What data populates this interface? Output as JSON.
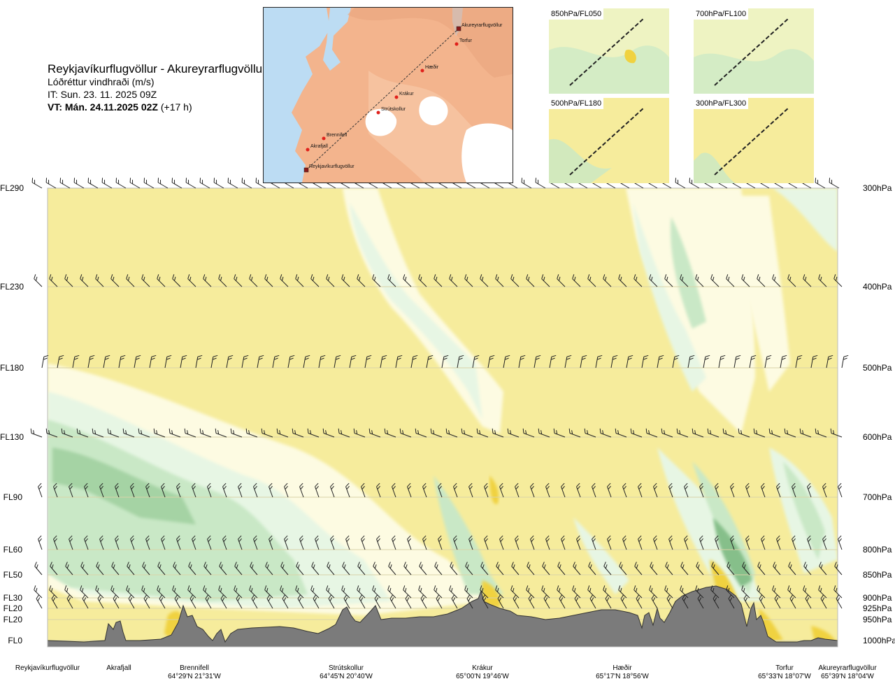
{
  "header": {
    "route": "Reykjavíkurflugvöllur - Akureyrarflugvöllur",
    "parameter": "Lóðréttur vindhraði (m/s)",
    "issue_time": "IT: Sun. 23. 11. 2025 09Z",
    "valid_time_bold": "VT: Mán. 24.11.2025 02Z",
    "valid_time_rest": "(+17 h)"
  },
  "inset_map": {
    "waypoints": [
      {
        "name": "Akureyrarflugvöllur"
      },
      {
        "name": "Torfur"
      },
      {
        "name": "Hæðir"
      },
      {
        "name": "Krákur"
      },
      {
        "name": "Strútskollur"
      },
      {
        "name": "Brennifell"
      },
      {
        "name": "Akrafjall"
      },
      {
        "name": "Reykjavíkurflugvöllur"
      }
    ],
    "colors": {
      "land": "#f3b48d",
      "sea": "#bcdcf3",
      "ice": "#ffffff",
      "route": "#333333",
      "waypoint": "#e0201b"
    }
  },
  "mini_maps": [
    {
      "label": "850hPa/FL050"
    },
    {
      "label": "700hPa/FL100"
    },
    {
      "label": "500hPa/FL180"
    },
    {
      "label": "300hPa/FL300"
    }
  ],
  "chart_data": {
    "type": "heatmap",
    "title": "Reykjavíkurflugvöllur - Akureyrarflugvöllur",
    "subtitle": "Lóðréttur vindhraði (m/s)",
    "levels": [
      {
        "fl": "FL290",
        "hpa": "300hPa"
      },
      {
        "fl": "FL230",
        "hpa": "400hPa"
      },
      {
        "fl": "FL180",
        "hpa": "500hPa"
      },
      {
        "fl": "FL130",
        "hpa": "600hPa"
      },
      {
        "fl": "FL90",
        "hpa": "700hPa"
      },
      {
        "fl": "FL60",
        "hpa": "800hPa"
      },
      {
        "fl": "FL50",
        "hpa": "850hPa"
      },
      {
        "fl": "FL30",
        "hpa": "900hPa"
      },
      {
        "fl": "FL20",
        "hpa": "925hPa"
      },
      {
        "fl": "FL20",
        "hpa": "950hPa"
      },
      {
        "fl": "FL0",
        "hpa": "1000hPa"
      }
    ],
    "x_positions": [
      {
        "name": "Reykjavíkurflugvöllur",
        "coord": ""
      },
      {
        "name": "Akrafjall",
        "coord": ""
      },
      {
        "name": "Brennifell",
        "coord": "64°29'N 21°31'W"
      },
      {
        "name": "Strútskollur",
        "coord": "64°45'N 20°40'W"
      },
      {
        "name": "Krákur",
        "coord": "65°00'N 19°46'W"
      },
      {
        "name": "Hæðir",
        "coord": "65°17'N 18°56'W"
      },
      {
        "name": "Torfur",
        "coord": "65°33'N 18°07'W"
      },
      {
        "name": "Akureyrarflugvöllur",
        "coord": "65°39'N 18°04'W"
      }
    ],
    "colors": {
      "background": "#f6ec9c",
      "light_cream": "#fdfbe2",
      "pale_green": "#e7f6e4",
      "light_green": "#c9e8c6",
      "mid_green": "#a5d3a4",
      "dark_green": "#86bf8a",
      "yellow": "#f0d240",
      "orange": "#e7a43a",
      "dark_orange": "#c2622a",
      "terrain": "#7b7b7b"
    }
  }
}
